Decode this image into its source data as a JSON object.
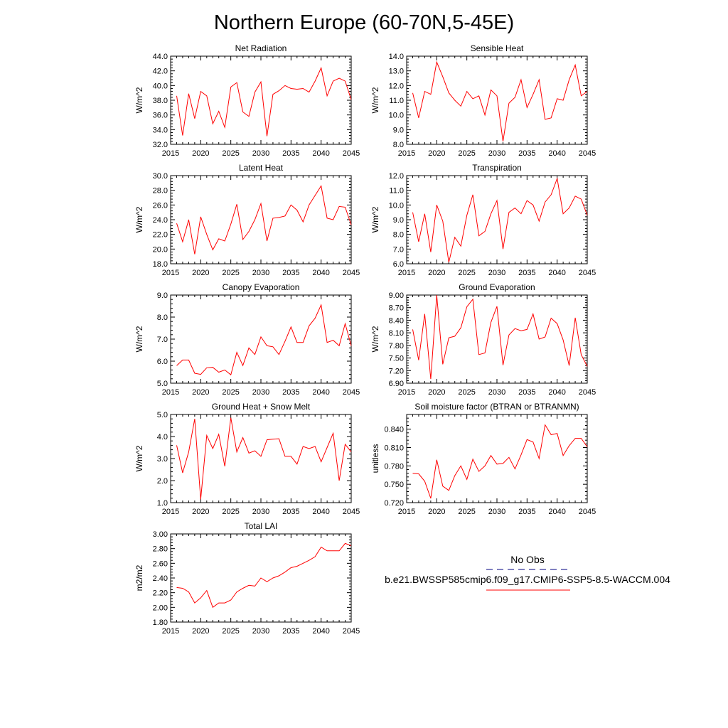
{
  "page_title": "Northern Europe (60-70N,5-45E)",
  "legend": {
    "entries": [
      {
        "label": "No Obs",
        "color": "#000080",
        "style": "dashed"
      },
      {
        "label": "b.e21.BWSSP585cmip6.f09_g17.CMIP6-SSP5-8.5-WACCM.004",
        "color": "#ff0000",
        "style": "solid"
      }
    ]
  },
  "colors": {
    "series": "#ff0000",
    "obs": "#000080"
  },
  "chart_data": [
    {
      "type": "line",
      "title": "Net Radiation",
      "ylabel": "W/m^2",
      "xlim": [
        2015,
        2045
      ],
      "ylim": [
        32,
        44
      ],
      "xticks": [
        2015,
        2020,
        2025,
        2030,
        2035,
        2040,
        2045
      ],
      "xtick_labels": [
        "2015",
        "2020",
        "2025",
        "2030",
        "2035",
        "2040",
        "2045"
      ],
      "yticks": [
        32,
        34,
        36,
        38,
        40,
        42,
        44
      ],
      "ytick_labels": [
        "32.0",
        "34.0",
        "36.0",
        "38.0",
        "40.0",
        "42.0",
        "44.0"
      ],
      "x": [
        2016,
        2017,
        2018,
        2019,
        2020,
        2021,
        2022,
        2023,
        2024,
        2025,
        2026,
        2027,
        2028,
        2029,
        2030,
        2031,
        2032,
        2033,
        2034,
        2035,
        2036,
        2037,
        2038,
        2039,
        2040,
        2041,
        2042,
        2043,
        2044,
        2045
      ],
      "y": [
        38.6,
        33.2,
        38.9,
        35.5,
        39.2,
        38.6,
        34.8,
        36.5,
        34.3,
        39.8,
        40.4,
        36.4,
        35.8,
        39.1,
        40.5,
        33.1,
        38.8,
        39.3,
        40.0,
        39.6,
        39.5,
        39.6,
        39.1,
        40.6,
        42.4,
        38.6,
        40.6,
        41.0,
        40.6,
        38.1
      ]
    },
    {
      "type": "line",
      "title": "Sensible Heat",
      "ylabel": "W/m^2",
      "xlim": [
        2015,
        2045
      ],
      "ylim": [
        8,
        14
      ],
      "xticks": [
        2015,
        2020,
        2025,
        2030,
        2035,
        2040,
        2045
      ],
      "xtick_labels": [
        "2015",
        "2020",
        "2025",
        "2030",
        "2035",
        "2040",
        "2045"
      ],
      "yticks": [
        8,
        9,
        10,
        11,
        12,
        13,
        14
      ],
      "ytick_labels": [
        "8.0",
        "9.0",
        "10.0",
        "11.0",
        "12.0",
        "13.0",
        "14.0"
      ],
      "x": [
        2016,
        2017,
        2018,
        2019,
        2020,
        2021,
        2022,
        2023,
        2024,
        2025,
        2026,
        2027,
        2028,
        2029,
        2030,
        2031,
        2032,
        2033,
        2034,
        2035,
        2036,
        2037,
        2038,
        2039,
        2040,
        2041,
        2042,
        2043,
        2044,
        2045
      ],
      "y": [
        11.5,
        9.8,
        11.6,
        11.4,
        13.6,
        12.6,
        11.5,
        11.0,
        10.6,
        11.6,
        11.1,
        11.3,
        10.0,
        11.7,
        11.3,
        8.2,
        10.8,
        11.2,
        12.4,
        10.5,
        11.4,
        12.4,
        9.7,
        9.8,
        11.1,
        11.0,
        12.4,
        13.4,
        11.3,
        11.6
      ]
    },
    {
      "type": "line",
      "title": "Latent Heat",
      "ylabel": "W/m^2",
      "xlim": [
        2015,
        2045
      ],
      "ylim": [
        18,
        30
      ],
      "xticks": [
        2015,
        2020,
        2025,
        2030,
        2035,
        2040,
        2045
      ],
      "xtick_labels": [
        "2015",
        "2020",
        "2025",
        "2030",
        "2035",
        "2040",
        "2045"
      ],
      "yticks": [
        18,
        20,
        22,
        24,
        26,
        28,
        30
      ],
      "ytick_labels": [
        "18.0",
        "20.0",
        "22.0",
        "24.0",
        "26.0",
        "28.0",
        "30.0"
      ],
      "x": [
        2016,
        2017,
        2018,
        2019,
        2020,
        2021,
        2022,
        2023,
        2024,
        2025,
        2026,
        2027,
        2028,
        2029,
        2030,
        2031,
        2032,
        2033,
        2034,
        2035,
        2036,
        2037,
        2038,
        2039,
        2040,
        2041,
        2042,
        2043,
        2044,
        2045
      ],
      "y": [
        23.5,
        21.0,
        24.0,
        19.3,
        24.4,
        22.0,
        19.9,
        21.4,
        21.1,
        23.4,
        26.1,
        21.3,
        22.4,
        24.0,
        26.2,
        21.1,
        24.2,
        24.3,
        24.5,
        26.0,
        25.3,
        23.7,
        26.0,
        27.3,
        28.6,
        24.2,
        24.0,
        25.8,
        25.7,
        23.3
      ]
    },
    {
      "type": "line",
      "title": "Transpiration",
      "ylabel": "W/m^2",
      "xlim": [
        2015,
        2045
      ],
      "ylim": [
        6,
        12
      ],
      "xticks": [
        2015,
        2020,
        2025,
        2030,
        2035,
        2040,
        2045
      ],
      "xtick_labels": [
        "2015",
        "2020",
        "2025",
        "2030",
        "2035",
        "2040",
        "2045"
      ],
      "yticks": [
        6,
        7,
        8,
        9,
        10,
        11,
        12
      ],
      "ytick_labels": [
        "6.0",
        "7.0",
        "8.0",
        "9.0",
        "10.0",
        "11.0",
        "12.0"
      ],
      "x": [
        2016,
        2017,
        2018,
        2019,
        2020,
        2021,
        2022,
        2023,
        2024,
        2025,
        2026,
        2027,
        2028,
        2029,
        2030,
        2031,
        2032,
        2033,
        2034,
        2035,
        2036,
        2037,
        2038,
        2039,
        2040,
        2041,
        2042,
        2043,
        2044,
        2045
      ],
      "y": [
        9.5,
        7.5,
        9.4,
        6.8,
        10.0,
        8.9,
        6.1,
        7.8,
        7.2,
        9.3,
        10.7,
        7.9,
        8.2,
        9.4,
        10.3,
        7.0,
        9.5,
        9.8,
        9.4,
        10.3,
        10.0,
        8.9,
        10.2,
        10.7,
        11.8,
        9.4,
        9.8,
        10.6,
        10.4,
        9.3
      ]
    },
    {
      "type": "line",
      "title": "Canopy Evaporation",
      "ylabel": "W/m^2",
      "xlim": [
        2015,
        2045
      ],
      "ylim": [
        5,
        9
      ],
      "xticks": [
        2015,
        2020,
        2025,
        2030,
        2035,
        2040,
        2045
      ],
      "xtick_labels": [
        "2015",
        "2020",
        "2025",
        "2030",
        "2035",
        "2040",
        "2045"
      ],
      "yticks": [
        5,
        6,
        7,
        8,
        9
      ],
      "ytick_labels": [
        "5.0",
        "6.0",
        "7.0",
        "8.0",
        "9.0"
      ],
      "x": [
        2016,
        2017,
        2018,
        2019,
        2020,
        2021,
        2022,
        2023,
        2024,
        2025,
        2026,
        2027,
        2028,
        2029,
        2030,
        2031,
        2032,
        2033,
        2034,
        2035,
        2036,
        2037,
        2038,
        2039,
        2040,
        2041,
        2042,
        2043,
        2044,
        2045
      ],
      "y": [
        5.8,
        6.05,
        6.05,
        5.45,
        5.4,
        5.7,
        5.72,
        5.5,
        5.6,
        5.38,
        6.4,
        5.8,
        6.6,
        6.3,
        7.1,
        6.7,
        6.65,
        6.3,
        6.9,
        7.55,
        6.85,
        6.85,
        7.6,
        7.95,
        8.55,
        6.85,
        6.95,
        6.7,
        7.7,
        6.7
      ]
    },
    {
      "type": "line",
      "title": "Ground Evaporation",
      "ylabel": "W/m^2",
      "xlim": [
        2015,
        2045
      ],
      "ylim": [
        6.9,
        9.0
      ],
      "xticks": [
        2015,
        2020,
        2025,
        2030,
        2035,
        2040,
        2045
      ],
      "xtick_labels": [
        "2015",
        "2020",
        "2025",
        "2030",
        "2035",
        "2040",
        "2045"
      ],
      "yticks": [
        6.9,
        7.2,
        7.5,
        7.8,
        8.1,
        8.4,
        8.7,
        9.0
      ],
      "ytick_labels": [
        "6.90",
        "7.20",
        "7.50",
        "7.80",
        "8.10",
        "8.40",
        "8.70",
        "9.00"
      ],
      "x": [
        2016,
        2017,
        2018,
        2019,
        2020,
        2021,
        2022,
        2023,
        2024,
        2025,
        2026,
        2027,
        2028,
        2029,
        2030,
        2031,
        2032,
        2033,
        2034,
        2035,
        2036,
        2037,
        2038,
        2039,
        2040,
        2041,
        2042,
        2043,
        2044,
        2045
      ],
      "y": [
        8.18,
        7.45,
        8.55,
        7.0,
        9.0,
        7.35,
        7.98,
        8.02,
        8.22,
        8.72,
        8.9,
        7.58,
        7.62,
        8.35,
        8.73,
        7.33,
        8.05,
        8.2,
        8.15,
        8.18,
        8.55,
        7.95,
        8.0,
        8.45,
        8.32,
        7.93,
        7.32,
        8.46,
        7.58,
        7.3
      ]
    },
    {
      "type": "line",
      "title": "Ground Heat + Snow Melt",
      "ylabel": "W/m^2",
      "xlim": [
        2015,
        2045
      ],
      "ylim": [
        1,
        5
      ],
      "xticks": [
        2015,
        2020,
        2025,
        2030,
        2035,
        2040,
        2045
      ],
      "xtick_labels": [
        "2015",
        "2020",
        "2025",
        "2030",
        "2035",
        "2040",
        "2045"
      ],
      "yticks": [
        1,
        2,
        3,
        4,
        5
      ],
      "ytick_labels": [
        "1.0",
        "2.0",
        "3.0",
        "4.0",
        "5.0"
      ],
      "x": [
        2016,
        2017,
        2018,
        2019,
        2020,
        2021,
        2022,
        2023,
        2024,
        2025,
        2026,
        2027,
        2028,
        2029,
        2030,
        2031,
        2032,
        2033,
        2034,
        2035,
        2036,
        2037,
        2038,
        2039,
        2040,
        2041,
        2042,
        2043,
        2044,
        2045
      ],
      "y": [
        3.6,
        2.35,
        3.3,
        4.8,
        1.15,
        4.05,
        3.45,
        4.1,
        2.65,
        4.85,
        3.3,
        3.95,
        3.25,
        3.35,
        3.1,
        3.85,
        3.88,
        3.9,
        3.1,
        3.1,
        2.75,
        3.55,
        3.45,
        3.55,
        2.85,
        3.5,
        4.15,
        2.0,
        3.65,
        3.3
      ]
    },
    {
      "type": "line",
      "title": "Soil moisture factor (BTRAN or BTRANMN)",
      "ylabel": "unitless",
      "xlim": [
        2015,
        2045
      ],
      "ylim": [
        0.72,
        0.864
      ],
      "xticks": [
        2015,
        2020,
        2025,
        2030,
        2035,
        2040,
        2045
      ],
      "xtick_labels": [
        "2015",
        "2020",
        "2025",
        "2030",
        "2035",
        "2040",
        "2045"
      ],
      "yticks": [
        0.72,
        0.75,
        0.78,
        0.81,
        0.84
      ],
      "ytick_labels": [
        "0.720",
        "0.750",
        "0.780",
        "0.810",
        "0.840"
      ],
      "x": [
        2016,
        2017,
        2018,
        2019,
        2020,
        2021,
        2022,
        2023,
        2024,
        2025,
        2026,
        2027,
        2028,
        2029,
        2030,
        2031,
        2032,
        2033,
        2034,
        2035,
        2036,
        2037,
        2038,
        2039,
        2040,
        2041,
        2042,
        2043,
        2044,
        2045
      ],
      "y": [
        0.768,
        0.767,
        0.755,
        0.727,
        0.79,
        0.747,
        0.74,
        0.764,
        0.78,
        0.758,
        0.791,
        0.771,
        0.78,
        0.797,
        0.783,
        0.784,
        0.794,
        0.775,
        0.798,
        0.823,
        0.819,
        0.792,
        0.847,
        0.831,
        0.833,
        0.797,
        0.813,
        0.825,
        0.825,
        0.811
      ]
    },
    {
      "type": "line",
      "title": "Total LAI",
      "ylabel": "m2/m2",
      "xlim": [
        2015,
        2045
      ],
      "ylim": [
        1.8,
        3.0
      ],
      "xticks": [
        2015,
        2020,
        2025,
        2030,
        2035,
        2040,
        2045
      ],
      "xtick_labels": [
        "2015",
        "2020",
        "2025",
        "2030",
        "2035",
        "2040",
        "2045"
      ],
      "yticks": [
        1.8,
        2.0,
        2.2,
        2.4,
        2.6,
        2.8,
        3.0
      ],
      "ytick_labels": [
        "1.80",
        "2.00",
        "2.20",
        "2.40",
        "2.60",
        "2.80",
        "3.00"
      ],
      "x": [
        2016,
        2017,
        2018,
        2019,
        2020,
        2021,
        2022,
        2023,
        2024,
        2025,
        2026,
        2027,
        2028,
        2029,
        2030,
        2031,
        2032,
        2033,
        2034,
        2035,
        2036,
        2037,
        2038,
        2039,
        2040,
        2041,
        2042,
        2043,
        2044,
        2045
      ],
      "y": [
        2.27,
        2.26,
        2.21,
        2.06,
        2.13,
        2.23,
        2.0,
        2.06,
        2.06,
        2.1,
        2.21,
        2.26,
        2.3,
        2.29,
        2.4,
        2.35,
        2.4,
        2.43,
        2.48,
        2.54,
        2.56,
        2.6,
        2.64,
        2.69,
        2.82,
        2.77,
        2.77,
        2.77,
        2.87,
        2.84
      ]
    }
  ]
}
